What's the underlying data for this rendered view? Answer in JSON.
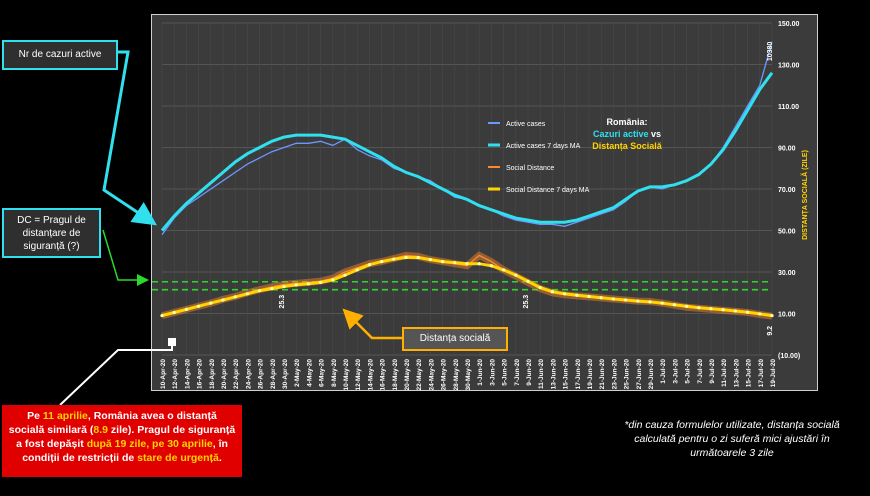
{
  "chart_data": {
    "type": "line",
    "title_lines": [
      "România:",
      "Cazuri active",
      "vs",
      "Distanța Socială"
    ],
    "y2label": "DISTANȚA SOCIALĂ (ZILE)",
    "ylim": [
      -10,
      150
    ],
    "yticks": [
      "(10.00)",
      "10.00",
      "30.00",
      "50.00",
      "70.00",
      "90.00",
      "110.00",
      "130.00",
      "150.00"
    ],
    "ytick_values": [
      -10,
      10,
      30,
      50,
      70,
      90,
      110,
      130,
      150
    ],
    "x_labels": [
      "10-Apr-20",
      "12-Apr-20",
      "14-Apr-20",
      "16-Apr-20",
      "18-Apr-20",
      "20-Apr-20",
      "22-Apr-20",
      "24-Apr-20",
      "26-Apr-20",
      "28-Apr-20",
      "30-Apr-20",
      "2-May-20",
      "4-May-20",
      "6-May-20",
      "8-May-20",
      "10-May-20",
      "12-May-20",
      "14-May-20",
      "16-May-20",
      "18-May-20",
      "20-May-20",
      "22-May-20",
      "24-May-20",
      "26-May-20",
      "28-May-20",
      "30-May-20",
      "1-Jun-20",
      "3-Jun-20",
      "5-Jun-20",
      "7-Jun-20",
      "9-Jun-20",
      "11-Jun-20",
      "13-Jun-20",
      "15-Jun-20",
      "17-Jun-20",
      "19-Jun-20",
      "21-Jun-20",
      "23-Jun-20",
      "25-Jun-20",
      "27-Jun-20",
      "29-Jun-20",
      "1-Jul-20",
      "3-Jul-20",
      "5-Jul-20",
      "7-Jul-20",
      "9-Jul-20",
      "11-Jul-20",
      "13-Jul-20",
      "15-Jul-20",
      "17-Jul-20",
      "19-Jul-20"
    ],
    "series": [
      {
        "name": "Active cases",
        "color": "#6a98ff",
        "values": [
          48,
          56,
          62,
          66,
          70,
          74,
          78,
          82,
          85,
          88,
          90,
          92,
          92,
          93,
          91,
          94,
          89,
          86,
          84,
          80,
          78,
          76,
          74,
          70,
          66,
          65,
          62,
          60,
          57,
          55,
          54,
          53,
          53,
          52,
          54,
          56,
          58,
          60,
          64,
          69,
          71,
          70,
          72,
          74,
          77,
          82,
          90,
          100,
          110,
          120,
          141
        ]
      },
      {
        "name": "Active cases 7 days MA",
        "color": "#30e0ef",
        "values": [
          50,
          57,
          63,
          68,
          73,
          78,
          83,
          87,
          90,
          93,
          95,
          96,
          96,
          96,
          95,
          94,
          91,
          88,
          85,
          81,
          78,
          76,
          73,
          70,
          67,
          65,
          62,
          60,
          58,
          56,
          55,
          54,
          54,
          54,
          55,
          57,
          59,
          61,
          65,
          69,
          71,
          71,
          72,
          74,
          77,
          82,
          89,
          98,
          108,
          118,
          126
        ]
      },
      {
        "name": "Social Distance",
        "color": "#ff8a2a",
        "values": [
          8.9,
          10.5,
          12,
          13.5,
          15,
          16.8,
          18.2,
          20,
          21.5,
          22.8,
          24,
          24.5,
          25,
          25.6,
          27,
          30,
          32,
          34,
          35,
          36.5,
          38,
          37.5,
          36,
          35,
          34,
          33,
          38,
          35,
          31,
          28,
          25,
          22,
          20,
          19,
          18.5,
          18,
          17.5,
          17,
          16.5,
          16,
          15.8,
          15,
          14,
          13,
          12.5,
          12,
          11.5,
          11,
          10.5,
          9.5,
          8.7
        ]
      },
      {
        "name": "Social Distance 7 days MA",
        "color": "#ffd400",
        "values": [
          9,
          10.5,
          12,
          13.5,
          15,
          16.5,
          18,
          19.5,
          21,
          22,
          23,
          23.8,
          24.3,
          25,
          26.2,
          28.5,
          31,
          33.5,
          35,
          36.2,
          37,
          37,
          36,
          35,
          34.5,
          34,
          34,
          33,
          31,
          28.5,
          25.5,
          22.5,
          20.5,
          19.5,
          18.8,
          18.2,
          17.6,
          17,
          16.5,
          16,
          15.6,
          15,
          14.2,
          13.5,
          12.8,
          12.3,
          11.8,
          11.2,
          10.6,
          9.8,
          9
        ]
      }
    ],
    "threshold_values": [
      25.3,
      21.5
    ],
    "annotations": [
      "25.3",
      "25.3",
      "10380",
      "9.2"
    ]
  },
  "callouts": {
    "active_label": "Nr de cazuri active",
    "dc_label": "DC = Pragul de distanțare de siguranță (?)",
    "distance_label": "Distanța socială"
  },
  "red_note": {
    "p1": "Pe ",
    "date1": "11 aprilie",
    "p2": ", România avea o distanță socială similară (",
    "val": "8.9",
    "p3": " zile). Pragul de siguranță a fost depășit ",
    "days": "după 19 zile, pe 30 aprilie",
    "p4": ", în condiții de restricții de ",
    "state": "stare de urgență",
    "p5": "."
  },
  "footnote": "*din cauza formulelor utilizate, distanța socială calculată pentru o zi suferă mici ajustări în următoarele 3 zile",
  "colors": {
    "background": "#000000",
    "plot": "#3b3b3b",
    "cyan": "#30e0ef",
    "yellow": "#ffd400",
    "orange": "#ff8a2a",
    "green": "#2bd92b",
    "red": "#e00000"
  }
}
